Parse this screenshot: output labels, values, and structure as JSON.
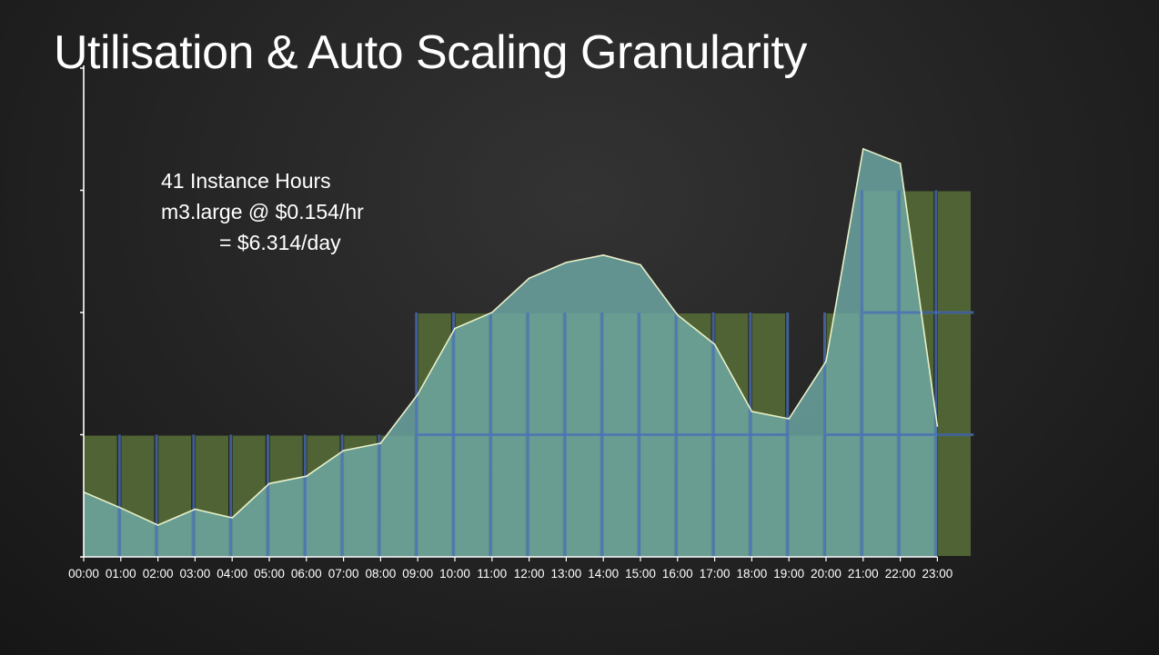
{
  "slide": {
    "title": "Utilisation & Auto Scaling Granularity"
  },
  "annotation": {
    "line1": "41 Instance Hours",
    "line2": "m3.large @ $0.154/hr",
    "line3": "= $6.314/day"
  },
  "colors": {
    "background": "#232323",
    "instance_bar": "#4f6334",
    "utilisation_fill": "#6fa9a6",
    "utilisation_line": "#e8f0c8",
    "hour_divider": "#4a72b8",
    "axis": "#ffffff",
    "text": "#ffffff"
  },
  "chart_data": {
    "type": "area",
    "title": "",
    "xlabel": "",
    "ylabel": "",
    "ylim": [
      0,
      4
    ],
    "grid": false,
    "categories": [
      "00:00",
      "01:00",
      "02:00",
      "03:00",
      "04:00",
      "05:00",
      "06:00",
      "07:00",
      "08:00",
      "09:00",
      "10:00",
      "11:00",
      "12:00",
      "13:00",
      "14:00",
      "15:00",
      "16:00",
      "17:00",
      "18:00",
      "19:00",
      "20:00",
      "21:00",
      "22:00",
      "23:00"
    ],
    "series": [
      {
        "kind": "bar",
        "values": [
          1,
          1,
          1,
          1,
          1,
          1,
          1,
          1,
          1,
          2,
          2,
          2,
          2,
          2,
          2,
          2,
          2,
          2,
          2,
          1,
          2,
          3,
          3,
          3
        ]
      },
      {
        "kind": "area",
        "x": [
          "00:00",
          "01:00",
          "02:00",
          "03:00",
          "04:00",
          "05:00",
          "06:00",
          "07:00",
          "08:00",
          "09:00",
          "10:00",
          "11:00",
          "12:00",
          "13:00",
          "14:00",
          "15:00",
          "16:00",
          "17:00",
          "18:00",
          "19:00",
          "20:00",
          "21:00",
          "22:00",
          "23:00"
        ],
        "values": [
          0.53,
          0.4,
          0.26,
          0.39,
          0.32,
          0.6,
          0.66,
          0.87,
          0.93,
          1.33,
          1.87,
          2.0,
          2.28,
          2.41,
          2.47,
          2.39,
          1.98,
          1.74,
          1.19,
          1.13,
          1.6,
          3.34,
          3.22,
          1.07
        ]
      }
    ]
  }
}
